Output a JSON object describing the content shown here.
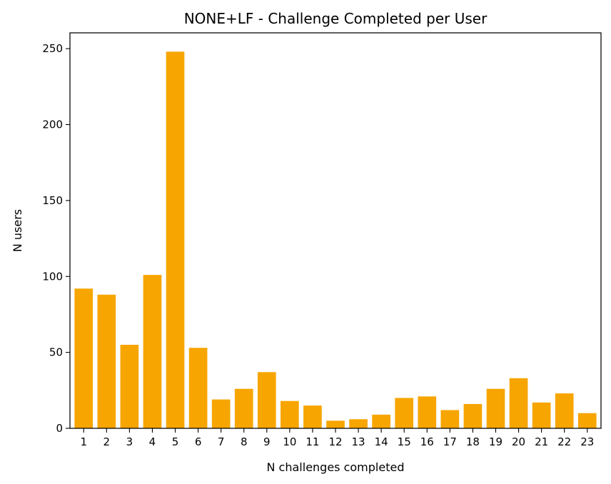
{
  "chart_data": {
    "type": "bar",
    "title": "NONE+LF - Challenge Completed per User",
    "xlabel": "N challenges completed",
    "ylabel": "N users",
    "categories": [
      "1",
      "2",
      "3",
      "4",
      "5",
      "6",
      "7",
      "8",
      "9",
      "10",
      "11",
      "12",
      "13",
      "14",
      "15",
      "16",
      "17",
      "18",
      "19",
      "20",
      "21",
      "22",
      "23"
    ],
    "values": [
      92,
      88,
      55,
      101,
      248,
      53,
      19,
      26,
      37,
      18,
      15,
      5,
      6,
      9,
      20,
      21,
      12,
      16,
      26,
      33,
      17,
      23,
      10
    ],
    "ylim": [
      0,
      260.4
    ],
    "yticks": [
      0,
      50,
      100,
      150,
      200,
      250
    ],
    "bar_color": "#f7a500",
    "grid": false,
    "legend": "none"
  }
}
